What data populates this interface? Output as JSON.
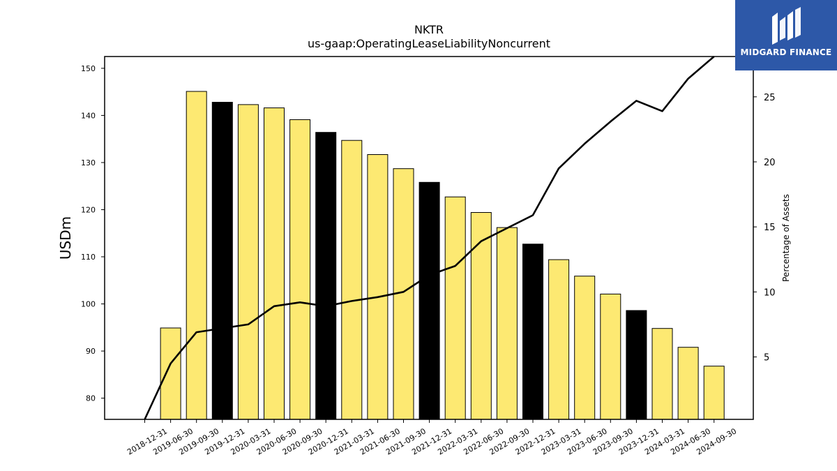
{
  "chart_data": {
    "type": "bar",
    "title": "NKTR",
    "subtitle": "us-gaap:OperatingLeaseLiabilityNoncurrent",
    "ylabel": "USDm",
    "y2label": "Percentage of Assets",
    "ylim": [
      75.5,
      152.5
    ],
    "y2lim": [
      0.2,
      28.1
    ],
    "yticks": [
      80,
      90,
      100,
      110,
      120,
      130,
      140,
      150
    ],
    "y2ticks": [
      5,
      10,
      15,
      20,
      25
    ],
    "categories": [
      "2018-12-31",
      "2019-06-30",
      "2019-09-30",
      "2019-12-31",
      "2020-03-31",
      "2020-06-30",
      "2020-09-30",
      "2020-12-31",
      "2021-03-31",
      "2021-06-30",
      "2021-09-30",
      "2021-12-31",
      "2022-03-31",
      "2022-06-30",
      "2022-09-30",
      "2022-12-31",
      "2023-03-31",
      "2023-06-30",
      "2023-09-30",
      "2023-12-31",
      "2024-03-31",
      "2024-06-30",
      "2024-09-30"
    ],
    "series": [
      {
        "type": "bar",
        "axis": "left",
        "values": [
          null,
          94.9,
          145.1,
          142.8,
          142.3,
          141.6,
          139.1,
          136.4,
          134.7,
          131.7,
          128.7,
          125.8,
          122.7,
          119.4,
          116.2,
          112.7,
          109.4,
          105.9,
          102.1,
          98.6,
          94.8,
          90.8,
          86.8
        ],
        "colors": [
          "#fde972",
          "#fde972",
          "#fde972",
          "#000000",
          "#fde972",
          "#fde972",
          "#fde972",
          "#000000",
          "#fde972",
          "#fde972",
          "#fde972",
          "#000000",
          "#fde972",
          "#fde972",
          "#fde972",
          "#000000",
          "#fde972",
          "#fde972",
          "#fde972",
          "#000000",
          "#fde972",
          "#fde972",
          "#fde972"
        ]
      },
      {
        "type": "line",
        "axis": "right",
        "color": "#000000",
        "values": [
          0.2,
          4.5,
          6.9,
          7.2,
          7.5,
          8.9,
          9.2,
          8.9,
          9.3,
          9.6,
          10.0,
          11.3,
          12.0,
          13.9,
          14.9,
          15.9,
          19.5,
          21.4,
          23.1,
          24.7,
          23.9,
          26.4,
          28.1
        ]
      }
    ],
    "grid": false
  },
  "logo": {
    "text": "MIDGARD FINANCE",
    "icon": "midgard-m-logo-icon",
    "background": "#2d58a8"
  }
}
